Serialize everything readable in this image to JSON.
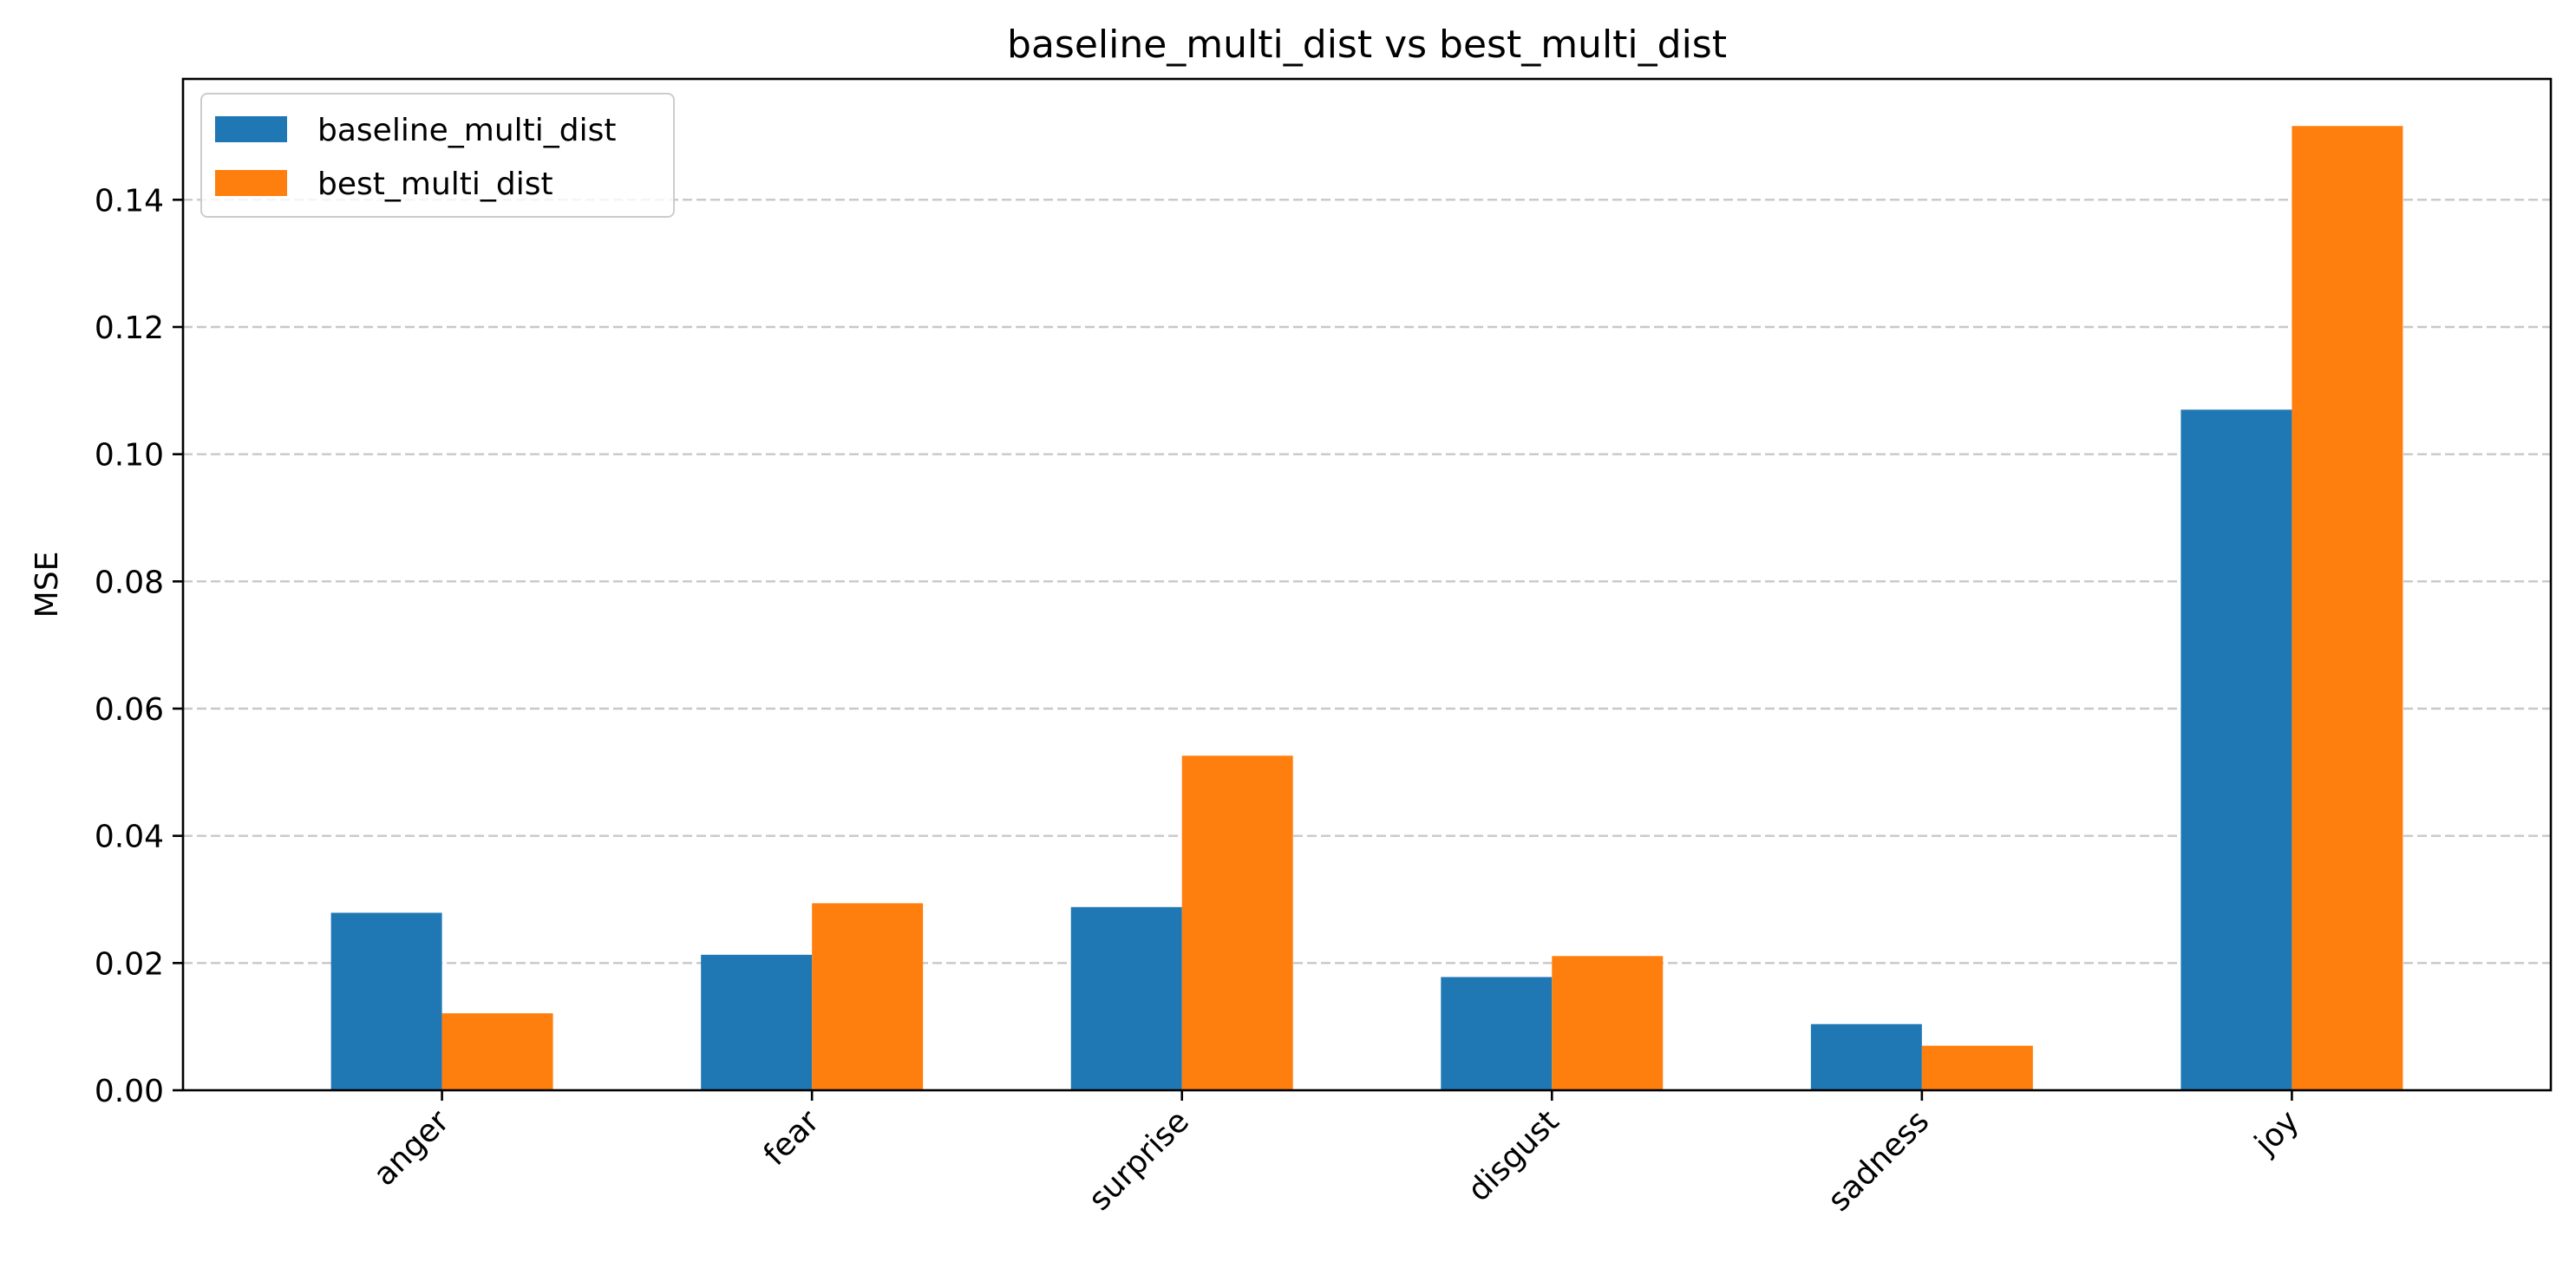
{
  "chart_data": {
    "type": "bar",
    "title": "baseline_multi_dist vs best_multi_dist",
    "xlabel": "",
    "ylabel": "MSE",
    "categories": [
      "anger",
      "fear",
      "surprise",
      "disgust",
      "sadness",
      "joy"
    ],
    "series": [
      {
        "name": "baseline_multi_dist",
        "color": "#1f77b4",
        "values": [
          0.0279,
          0.0213,
          0.0288,
          0.0178,
          0.0104,
          0.107
        ]
      },
      {
        "name": "best_multi_dist",
        "color": "#ff7f0e",
        "values": [
          0.0121,
          0.0294,
          0.0526,
          0.0211,
          0.007,
          0.1516
        ]
      }
    ],
    "ylim": [
      0,
      0.159
    ],
    "yticks": [
      0.0,
      0.02,
      0.04,
      0.06,
      0.08,
      0.1,
      0.12,
      0.14
    ],
    "ytick_labels": [
      "0.00",
      "0.02",
      "0.04",
      "0.06",
      "0.08",
      "0.10",
      "0.12",
      "0.14"
    ],
    "grid": "y-dashed",
    "legend_position": "top-left",
    "xtick_rotation": 45
  }
}
